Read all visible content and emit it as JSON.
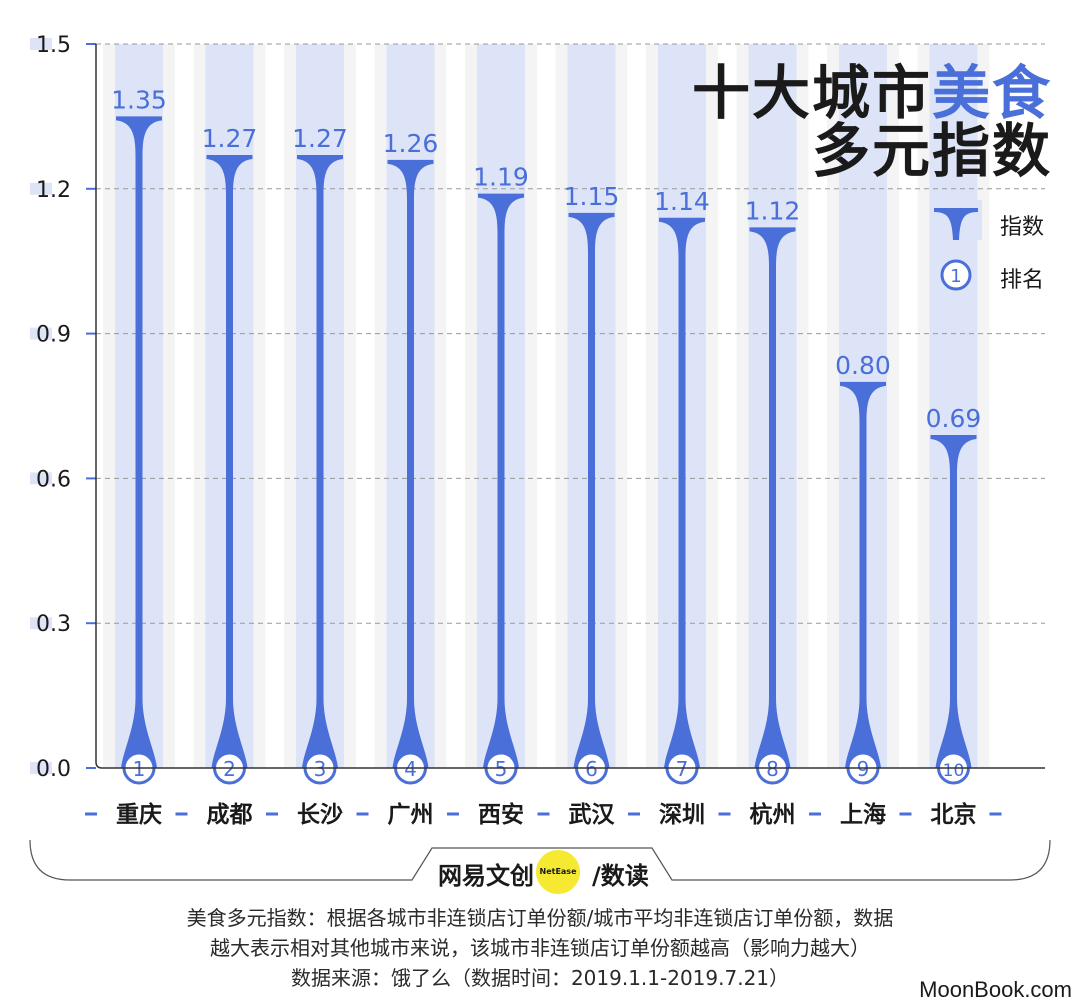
{
  "title": {
    "line1_plain": "十大城市",
    "line1_accent": "美食",
    "line2": "多元指数"
  },
  "legend": {
    "index_label": "指数",
    "rank_label": "排名",
    "rank_sample": "1"
  },
  "chart_data": {
    "type": "bar",
    "title": "十大城市美食多元指数",
    "categories": [
      "重庆",
      "成都",
      "长沙",
      "广州",
      "西安",
      "武汉",
      "深圳",
      "杭州",
      "上海",
      "北京"
    ],
    "ranks": [
      "1",
      "2",
      "3",
      "4",
      "5",
      "6",
      "7",
      "8",
      "9",
      "10"
    ],
    "values": [
      1.35,
      1.27,
      1.27,
      1.26,
      1.19,
      1.15,
      1.14,
      1.12,
      0.8,
      0.69
    ],
    "value_labels": [
      "1.35",
      "1.27",
      "1.27",
      "1.26",
      "1.19",
      "1.15",
      "1.14",
      "1.12",
      "0.80",
      "0.69"
    ],
    "ylim": [
      0,
      1.5
    ],
    "yticks": [
      "0.0",
      "0.3",
      "0.6",
      "0.9",
      "1.2",
      "1.5"
    ],
    "grid": true,
    "legend_position": "top-right"
  },
  "brand": {
    "left": "网易文创",
    "circle": "NetEase",
    "right": "/数读"
  },
  "footer": {
    "line1": "美食多元指数：根据各城市非连锁店订单份额/城市平均非连锁店订单份额，数据",
    "line2": "越大表示相对其他城市来说，该城市非连锁店订单份额越高（影响力越大）",
    "line3": "数据来源：饿了么（数据时间：2019.1.1-2019.7.21）"
  },
  "watermark": "MoonBook.com",
  "colors": {
    "accent": "#4a6fd8",
    "column_bg": "#dde4f7",
    "stripe_bg": "#f4f4f4",
    "grid": "#999999"
  }
}
